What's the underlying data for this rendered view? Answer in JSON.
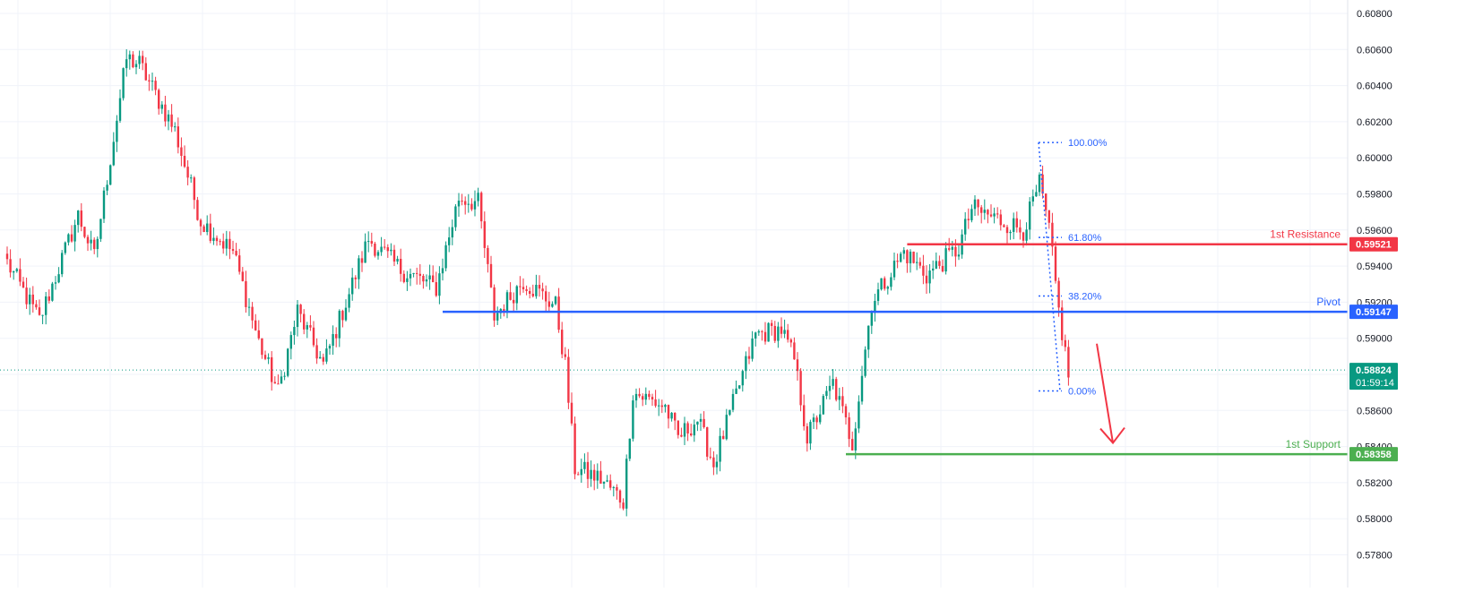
{
  "chart_data": {
    "type": "candlestick",
    "y_axis": {
      "min": 0.578,
      "max": 0.608,
      "ticks": [
        "0.60800",
        "0.60600",
        "0.60400",
        "0.60200",
        "0.60000",
        "0.59800",
        "0.59600",
        "0.59400",
        "0.59200",
        "0.59000",
        "0.58800",
        "0.58600",
        "0.58400",
        "0.58200",
        "0.58000",
        "0.57800"
      ]
    },
    "grid": true,
    "price_path": [
      {
        "i": 0,
        "p": 0.5942
      },
      {
        "i": 10,
        "p": 0.591
      },
      {
        "i": 22,
        "p": 0.5968
      },
      {
        "i": 27,
        "p": 0.5945
      },
      {
        "i": 37,
        "p": 0.6055
      },
      {
        "i": 41,
        "p": 0.6052
      },
      {
        "i": 52,
        "p": 0.6015
      },
      {
        "i": 60,
        "p": 0.5965
      },
      {
        "i": 70,
        "p": 0.5948
      },
      {
        "i": 78,
        "p": 0.5898
      },
      {
        "i": 84,
        "p": 0.587
      },
      {
        "i": 90,
        "p": 0.5915
      },
      {
        "i": 98,
        "p": 0.5885
      },
      {
        "i": 112,
        "p": 0.5955
      },
      {
        "i": 122,
        "p": 0.5938
      },
      {
        "i": 133,
        "p": 0.5928
      },
      {
        "i": 140,
        "p": 0.5978
      },
      {
        "i": 146,
        "p": 0.5975
      },
      {
        "i": 151,
        "p": 0.5912
      },
      {
        "i": 160,
        "p": 0.5932
      },
      {
        "i": 170,
        "p": 0.5918
      },
      {
        "i": 173,
        "p": 0.5885
      },
      {
        "i": 176,
        "p": 0.5828
      },
      {
        "i": 184,
        "p": 0.5822
      },
      {
        "i": 191,
        "p": 0.581
      },
      {
        "i": 194,
        "p": 0.587
      },
      {
        "i": 204,
        "p": 0.5862
      },
      {
        "i": 208,
        "p": 0.5845
      },
      {
        "i": 214,
        "p": 0.5855
      },
      {
        "i": 219,
        "p": 0.583
      },
      {
        "i": 232,
        "p": 0.5902
      },
      {
        "i": 240,
        "p": 0.5905
      },
      {
        "i": 244,
        "p": 0.5888
      },
      {
        "i": 248,
        "p": 0.5845
      },
      {
        "i": 256,
        "p": 0.5875
      },
      {
        "i": 262,
        "p": 0.5842
      },
      {
        "i": 268,
        "p": 0.592
      },
      {
        "i": 278,
        "p": 0.5948
      },
      {
        "i": 285,
        "p": 0.5935
      },
      {
        "i": 295,
        "p": 0.595
      },
      {
        "i": 299,
        "p": 0.5972
      },
      {
        "i": 315,
        "p": 0.596
      },
      {
        "i": 320,
        "p": 0.5985
      },
      {
        "i": 323,
        "p": 0.596
      },
      {
        "i": 326,
        "p": 0.5915
      },
      {
        "i": 329,
        "p": 0.588
      }
    ],
    "levels": [
      {
        "name": "1st Resistance",
        "value": 0.59521,
        "label": "0.59521",
        "color": "#f23645",
        "start_index": 279
      },
      {
        "name": "Pivot",
        "value": 0.59147,
        "label": "0.59147",
        "color": "#2962ff",
        "start_index": 135
      },
      {
        "name": "1st Support",
        "value": 0.58358,
        "label": "0.58358",
        "color": "#4caf50",
        "start_index": 260
      }
    ],
    "current_price": {
      "value": 0.58824,
      "label": "0.58824",
      "countdown": "01:59:14",
      "color": "#089981"
    },
    "fibonacci": {
      "high": 0.60085,
      "low": 0.58708,
      "levels": [
        {
          "ratio": 1.0,
          "label": "100.00%"
        },
        {
          "ratio": 0.618,
          "label": "61.80%"
        },
        {
          "ratio": 0.382,
          "label": "38.20%"
        },
        {
          "ratio": 0.0,
          "label": "0.00%"
        }
      ],
      "color": "#2962ff"
    },
    "arrow": {
      "from_price": 0.5897,
      "to_price": 0.5842,
      "color": "#f23645"
    },
    "colors": {
      "up": "#089981",
      "down": "#f23645",
      "grid": "#f0f3fa",
      "axis_text": "#131722"
    }
  }
}
